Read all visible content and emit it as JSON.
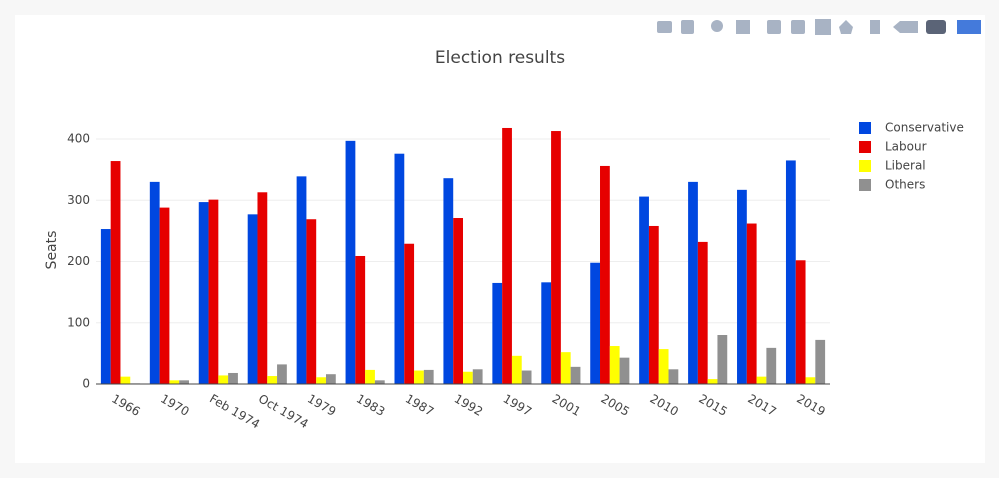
{
  "chart_data": {
    "type": "bar",
    "title": "Election results",
    "y_label": "Seats",
    "categories": [
      "1966",
      "1970",
      "Feb 1974",
      "Oct 1974",
      "1979",
      "1983",
      "1987",
      "1992",
      "1997",
      "2001",
      "2005",
      "2010",
      "2015",
      "2017",
      "2019"
    ],
    "series": [
      {
        "name": "Conservative",
        "color": "#0047e0",
        "values": [
          253,
          330,
          297,
          277,
          339,
          397,
          376,
          336,
          165,
          166,
          198,
          306,
          330,
          317,
          365
        ]
      },
      {
        "name": "Labour",
        "color": "#e60000",
        "values": [
          364,
          288,
          301,
          313,
          269,
          209,
          229,
          271,
          418,
          413,
          356,
          258,
          232,
          262,
          202
        ]
      },
      {
        "name": "Liberal",
        "color": "#ffff00",
        "values": [
          12,
          6,
          14,
          13,
          11,
          23,
          22,
          20,
          46,
          52,
          62,
          57,
          8,
          12,
          11
        ]
      },
      {
        "name": "Others",
        "color": "#909090",
        "values": [
          1,
          6,
          18,
          32,
          16,
          6,
          23,
          24,
          22,
          28,
          43,
          24,
          80,
          59,
          72
        ]
      }
    ],
    "ylim": [
      0,
      440
    ],
    "yticks": [
      0,
      100,
      200,
      300,
      400
    ],
    "grid": true
  }
}
